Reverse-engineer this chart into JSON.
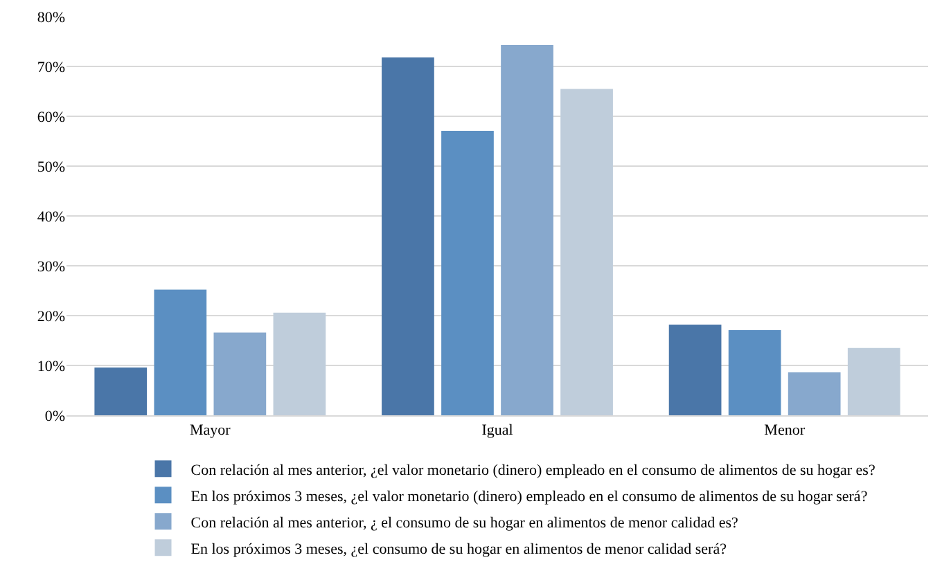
{
  "chart_data": {
    "type": "bar",
    "categories": [
      "Mayor",
      "Igual",
      "Menor"
    ],
    "series": [
      {
        "name": "Con relación al mes anterior, ¿el valor monetario (dinero) empleado en el consumo de alimentos de su hogar es?",
        "color": "#4a76a8",
        "values": [
          9.6,
          71.8,
          18.2
        ]
      },
      {
        "name": "En los próximos 3 meses, ¿el valor monetario (dinero) empleado en el consumo de alimentos de su hogar será?",
        "color": "#5b8fc2",
        "values": [
          25.2,
          57.1,
          17.1
        ]
      },
      {
        "name": "Con relación al mes anterior, ¿ el consumo de su hogar en alimentos de menor calidad es?",
        "color": "#87a8cd",
        "values": [
          16.6,
          74.3,
          8.6
        ]
      },
      {
        "name": "En los próximos 3 meses, ¿el consumo de su hogar en alimentos de menor calidad será?",
        "color": "#bfcddb",
        "values": [
          20.6,
          65.5,
          13.5
        ]
      }
    ],
    "ylim": [
      0,
      80
    ],
    "yticks": [
      {
        "value": 0,
        "label": "0%"
      },
      {
        "value": 10,
        "label": "10%"
      },
      {
        "value": 20,
        "label": "20%"
      },
      {
        "value": 30,
        "label": "30%"
      },
      {
        "value": 40,
        "label": "40%"
      },
      {
        "value": 50,
        "label": "50%"
      },
      {
        "value": 60,
        "label": "60%"
      },
      {
        "value": 70,
        "label": "70%"
      },
      {
        "value": 80,
        "label": "80%"
      }
    ],
    "grid": "y",
    "legend": "bottom"
  }
}
